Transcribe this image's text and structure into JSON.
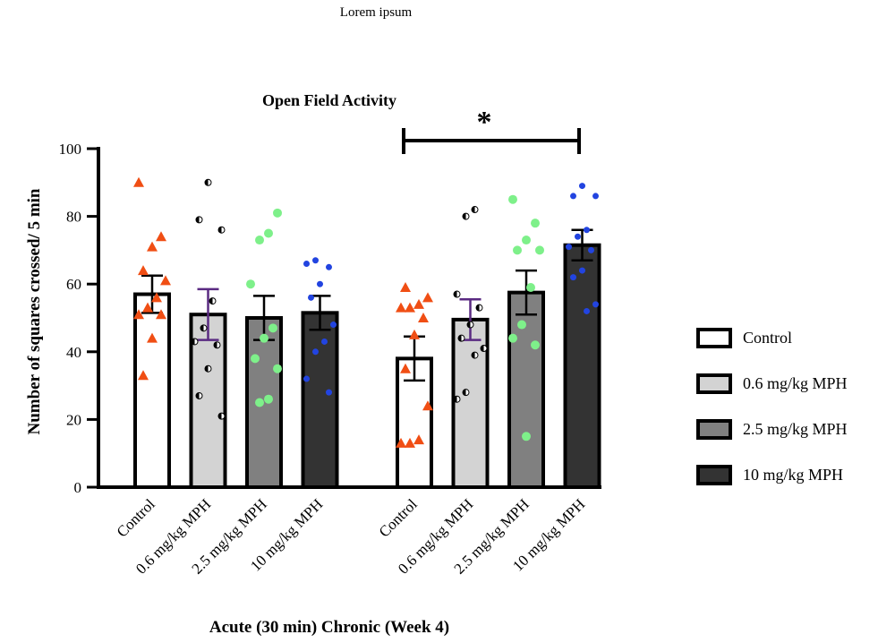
{
  "header": "Lorem ipsum",
  "chart_data": {
    "type": "bar",
    "title": "Open Field Activity",
    "ylabel": "Number of squares crossed/ 5 min",
    "xlabel": "Acute (30 min) Chronic (Week 4)",
    "ylim": [
      0,
      100
    ],
    "yticks": [
      0,
      20,
      40,
      60,
      80,
      100
    ],
    "legend": "right",
    "series": [
      {
        "name": "Control",
        "color": "#ffffff",
        "point_color": "#f04e14",
        "marker": "triangle",
        "error_color": "#000000",
        "values": [
          57,
          38
        ],
        "errors": [
          5.5,
          6.5
        ],
        "points": [
          [
            90,
            74,
            71,
            64,
            61,
            56,
            53,
            51,
            51,
            44,
            33
          ],
          [
            59,
            56,
            54,
            53,
            53,
            50,
            45,
            35,
            24,
            14,
            13,
            13
          ]
        ]
      },
      {
        "name": "0.6 mg/kg MPH",
        "color": "#d3d3d3",
        "point_color": "#000000",
        "marker": "half-circle",
        "error_color": "#5a2a82",
        "values": [
          51,
          49.5
        ],
        "errors": [
          7.5,
          6
        ],
        "points": [
          [
            90,
            79,
            76,
            55,
            47,
            43,
            42,
            35,
            27,
            21
          ],
          [
            82,
            80,
            57,
            53,
            48,
            44,
            41,
            39,
            28,
            26
          ]
        ]
      },
      {
        "name": "2.5 mg/kg MPH",
        "color": "#808080",
        "point_color": "#7ef08a",
        "marker": "circle",
        "error_color": "#000000",
        "values": [
          50,
          57.5
        ],
        "errors": [
          6.5,
          6.5
        ],
        "points": [
          [
            81,
            75,
            73,
            60,
            47,
            44,
            38,
            35,
            26,
            25
          ],
          [
            85,
            78,
            73,
            70,
            70,
            59,
            48,
            44,
            42,
            15
          ]
        ]
      },
      {
        "name": "10 mg/kg MPH",
        "color": "#333333",
        "point_color": "#2244e0",
        "marker": "circle",
        "error_color": "#000000",
        "values": [
          51.5,
          71.5
        ],
        "errors": [
          5,
          4.5
        ],
        "points": [
          [
            67,
            66,
            65,
            60,
            56,
            48,
            43,
            40,
            32,
            28
          ],
          [
            89,
            86,
            86,
            76,
            74,
            71,
            70,
            64,
            62,
            54,
            52
          ]
        ]
      }
    ],
    "annotations": [
      "*"
    ]
  }
}
